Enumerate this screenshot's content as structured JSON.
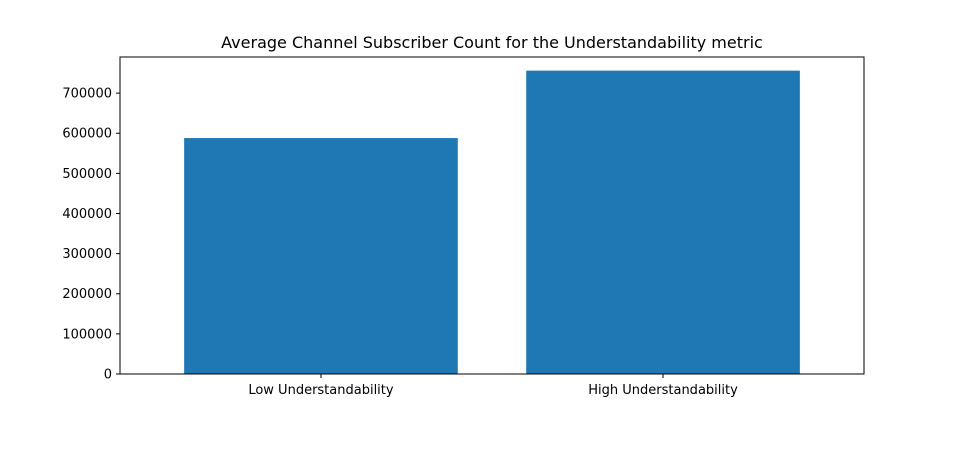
{
  "chart_data": {
    "type": "bar",
    "title": "Average Channel Subscriber Count for the Understandability metric",
    "categories": [
      "Low Understandability",
      "High Understandability"
    ],
    "values": [
      588000,
      756000
    ],
    "xlabel": "",
    "ylabel": "",
    "ylim": [
      0,
      790000
    ],
    "yticks": [
      0,
      100000,
      200000,
      300000,
      400000,
      500000,
      600000,
      700000
    ],
    "bar_color": "#1f77b4",
    "grid": false,
    "legend": "none"
  }
}
